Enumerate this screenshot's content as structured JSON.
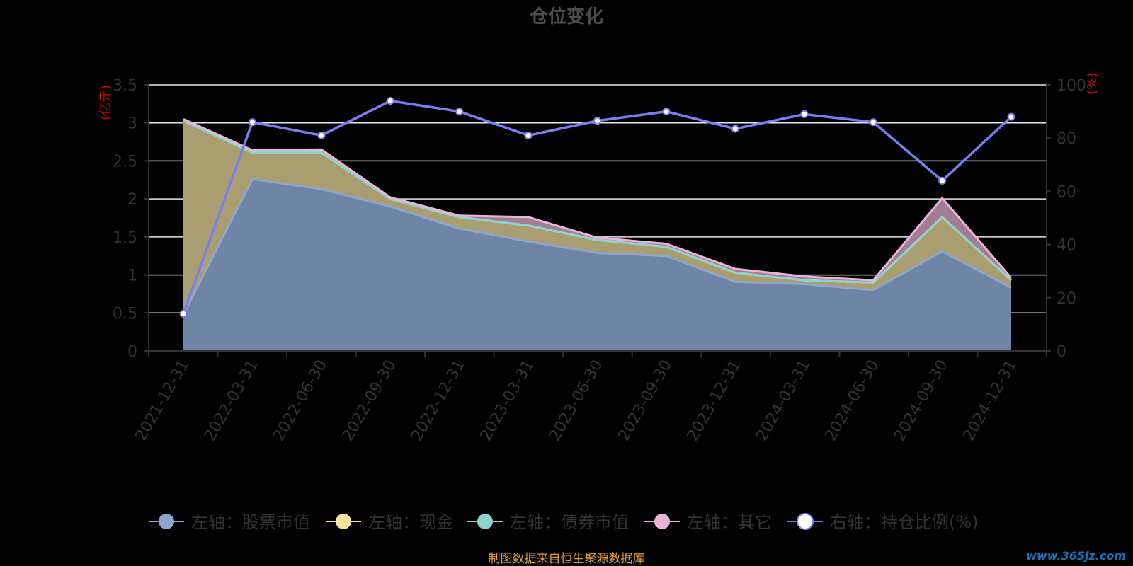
{
  "chart_data": {
    "type": "area",
    "title": "仓位变化",
    "categories": [
      "2021-12-31",
      "2022-03-31",
      "2022-06-30",
      "2022-09-30",
      "2022-12-31",
      "2023-03-31",
      "2023-06-30",
      "2023-09-30",
      "2023-12-31",
      "2024-03-31",
      "2024-06-30",
      "2024-09-30",
      "2024-12-31"
    ],
    "left_axis": {
      "unit": "(亿元)",
      "range": [
        0,
        3.5
      ],
      "ticks": [
        "0",
        "0.5",
        "1",
        "1.5",
        "2",
        "2.5",
        "3",
        "3.5"
      ]
    },
    "right_axis": {
      "unit": "(%)",
      "range": [
        0,
        100
      ],
      "ticks": [
        "0",
        "20",
        "40",
        "60",
        "80",
        "100"
      ]
    },
    "series": [
      {
        "name": "左轴：股票市值",
        "axis": "left",
        "stack": true,
        "color": "#8fa6cc",
        "fill": "#6e85a6",
        "values": [
          0.48,
          2.26,
          2.13,
          1.9,
          1.61,
          1.44,
          1.29,
          1.25,
          0.91,
          0.88,
          0.8,
          1.31,
          0.83
        ]
      },
      {
        "name": "左轴：现金",
        "axis": "left",
        "stack": true,
        "color": "#f8e6a0",
        "fill": "#a89e70",
        "values": [
          2.55,
          0.35,
          0.48,
          0.1,
          0.15,
          0.21,
          0.17,
          0.12,
          0.12,
          0.05,
          0.1,
          0.45,
          0.1
        ]
      },
      {
        "name": "左轴：债券市值",
        "axis": "left",
        "stack": true,
        "color": "#8fd3d0",
        "fill": "#7fb6b4",
        "values": [
          0,
          0,
          0,
          0,
          0,
          0,
          0,
          0,
          0,
          0,
          0,
          0,
          0
        ]
      },
      {
        "name": "左轴：其它",
        "axis": "left",
        "stack": true,
        "color": "#e8b4d8",
        "fill": "#a27e92",
        "values": [
          0.02,
          0.03,
          0.04,
          0.02,
          0.02,
          0.11,
          0.03,
          0.04,
          0.05,
          0.05,
          0.03,
          0.25,
          0.03
        ]
      },
      {
        "name": "右轴：持仓比例(%)",
        "axis": "right",
        "stack": false,
        "color": "#7b7ef0",
        "values": [
          14.0,
          86.0,
          81.0,
          94.0,
          90.0,
          81.0,
          86.5,
          90.0,
          83.5,
          89.0,
          86.0,
          64.0,
          88.0
        ]
      }
    ],
    "grid": true,
    "legend_position": "bottom"
  },
  "footer": {
    "source": "制图数据来自恒生聚源数据库",
    "watermark": "www.365jz.com"
  }
}
